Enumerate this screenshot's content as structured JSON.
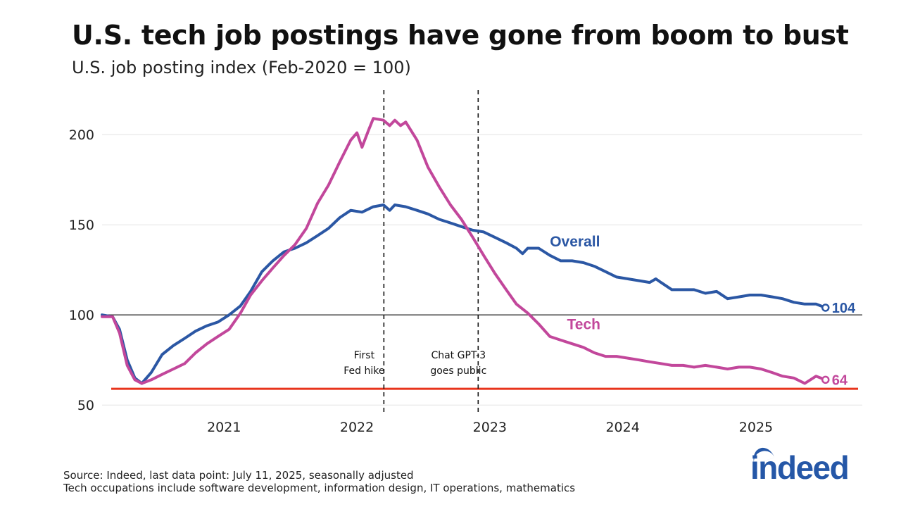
{
  "title": "U.S. tech job postings have gone from boom to bust",
  "subtitle": "U.S. job posting index (Feb-2020 = 100)",
  "footer": {
    "source": "Source: Indeed, last data point: July 11, 2025, seasonally adjusted",
    "note": "Tech occupations include software development, information design, IT operations, mathematics"
  },
  "logo": {
    "text": "indeed",
    "color": "#2557a7"
  },
  "chart_data": {
    "type": "line",
    "ylim": [
      45,
      220
    ],
    "xlim": [
      "2020-02-01",
      "2025-10-20"
    ],
    "yticks": [
      50,
      100,
      150,
      200
    ],
    "xticks": [
      {
        "label": "2021",
        "date": "2021-01-01"
      },
      {
        "label": "2022",
        "date": "2022-01-01"
      },
      {
        "label": "2023",
        "date": "2023-01-01"
      },
      {
        "label": "2024",
        "date": "2024-01-01"
      },
      {
        "label": "2025",
        "date": "2025-01-01"
      }
    ],
    "grid": true,
    "baseline": 100,
    "reference_line": {
      "value": 59,
      "color": "#e8341c"
    },
    "events": [
      {
        "date": "2022-03-16",
        "label_lines": [
          "First",
          "Fed hike"
        ]
      },
      {
        "date": "2022-11-30",
        "label_lines": [
          "Chat GPT-3",
          "goes public"
        ]
      }
    ],
    "series": [
      {
        "name": "Overall",
        "color": "#2b57a4",
        "end_label": "104",
        "points": [
          [
            "2020-02-01",
            100
          ],
          [
            "2020-03-01",
            99
          ],
          [
            "2020-03-20",
            92
          ],
          [
            "2020-04-10",
            75
          ],
          [
            "2020-05-01",
            65
          ],
          [
            "2020-05-20",
            62
          ],
          [
            "2020-06-15",
            68
          ],
          [
            "2020-07-15",
            78
          ],
          [
            "2020-08-15",
            83
          ],
          [
            "2020-09-15",
            87
          ],
          [
            "2020-10-15",
            91
          ],
          [
            "2020-11-15",
            94
          ],
          [
            "2020-12-15",
            96
          ],
          [
            "2021-01-15",
            100
          ],
          [
            "2021-02-15",
            105
          ],
          [
            "2021-03-15",
            113
          ],
          [
            "2021-04-15",
            124
          ],
          [
            "2021-05-15",
            130
          ],
          [
            "2021-06-15",
            135
          ],
          [
            "2021-07-15",
            137
          ],
          [
            "2021-08-15",
            140
          ],
          [
            "2021-09-15",
            144
          ],
          [
            "2021-10-15",
            148
          ],
          [
            "2021-11-15",
            154
          ],
          [
            "2021-12-15",
            158
          ],
          [
            "2022-01-15",
            157
          ],
          [
            "2022-02-15",
            160
          ],
          [
            "2022-03-15",
            161
          ],
          [
            "2022-04-01",
            158
          ],
          [
            "2022-04-15",
            161
          ],
          [
            "2022-05-15",
            160
          ],
          [
            "2022-06-15",
            158
          ],
          [
            "2022-07-15",
            156
          ],
          [
            "2022-08-15",
            153
          ],
          [
            "2022-09-15",
            151
          ],
          [
            "2022-10-15",
            149
          ],
          [
            "2022-11-15",
            147
          ],
          [
            "2022-12-15",
            146
          ],
          [
            "2023-01-15",
            143
          ],
          [
            "2023-02-15",
            140
          ],
          [
            "2023-03-15",
            137
          ],
          [
            "2023-04-01",
            134
          ],
          [
            "2023-04-15",
            137
          ],
          [
            "2023-05-15",
            137
          ],
          [
            "2023-06-15",
            133
          ],
          [
            "2023-07-15",
            130
          ],
          [
            "2023-08-15",
            130
          ],
          [
            "2023-09-15",
            129
          ],
          [
            "2023-10-15",
            127
          ],
          [
            "2023-11-15",
            124
          ],
          [
            "2023-12-15",
            121
          ],
          [
            "2024-01-15",
            120
          ],
          [
            "2024-02-15",
            119
          ],
          [
            "2024-03-15",
            118
          ],
          [
            "2024-04-01",
            120
          ],
          [
            "2024-04-15",
            118
          ],
          [
            "2024-05-15",
            114
          ],
          [
            "2024-06-15",
            114
          ],
          [
            "2024-07-15",
            114
          ],
          [
            "2024-08-15",
            112
          ],
          [
            "2024-09-15",
            113
          ],
          [
            "2024-10-15",
            109
          ],
          [
            "2024-11-15",
            110
          ],
          [
            "2024-12-15",
            111
          ],
          [
            "2025-01-15",
            111
          ],
          [
            "2025-02-15",
            110
          ],
          [
            "2025-03-15",
            109
          ],
          [
            "2025-04-15",
            107
          ],
          [
            "2025-05-15",
            106
          ],
          [
            "2025-06-15",
            106
          ],
          [
            "2025-07-11",
            104
          ]
        ]
      },
      {
        "name": "Tech",
        "color": "#c2479b",
        "end_label": "64",
        "points": [
          [
            "2020-02-01",
            99
          ],
          [
            "2020-03-01",
            99
          ],
          [
            "2020-03-20",
            90
          ],
          [
            "2020-04-10",
            72
          ],
          [
            "2020-05-01",
            64
          ],
          [
            "2020-05-20",
            62
          ],
          [
            "2020-06-15",
            64
          ],
          [
            "2020-07-15",
            67
          ],
          [
            "2020-08-15",
            70
          ],
          [
            "2020-09-15",
            73
          ],
          [
            "2020-10-15",
            79
          ],
          [
            "2020-11-15",
            84
          ],
          [
            "2020-12-15",
            88
          ],
          [
            "2021-01-15",
            92
          ],
          [
            "2021-02-15",
            101
          ],
          [
            "2021-03-15",
            111
          ],
          [
            "2021-04-15",
            119
          ],
          [
            "2021-05-15",
            126
          ],
          [
            "2021-06-15",
            133
          ],
          [
            "2021-07-15",
            139
          ],
          [
            "2021-08-15",
            148
          ],
          [
            "2021-09-15",
            162
          ],
          [
            "2021-10-15",
            172
          ],
          [
            "2021-11-15",
            185
          ],
          [
            "2021-12-15",
            197
          ],
          [
            "2022-01-01",
            201
          ],
          [
            "2022-01-15",
            193
          ],
          [
            "2022-02-01",
            202
          ],
          [
            "2022-02-15",
            209
          ],
          [
            "2022-03-15",
            208
          ],
          [
            "2022-04-01",
            205
          ],
          [
            "2022-04-15",
            208
          ],
          [
            "2022-05-01",
            205
          ],
          [
            "2022-05-15",
            207
          ],
          [
            "2022-06-15",
            197
          ],
          [
            "2022-07-15",
            182
          ],
          [
            "2022-08-15",
            171
          ],
          [
            "2022-09-15",
            161
          ],
          [
            "2022-10-15",
            153
          ],
          [
            "2022-11-15",
            143
          ],
          [
            "2022-12-15",
            133
          ],
          [
            "2023-01-15",
            123
          ],
          [
            "2023-02-15",
            114
          ],
          [
            "2023-03-15",
            106
          ],
          [
            "2023-04-15",
            101
          ],
          [
            "2023-05-15",
            95
          ],
          [
            "2023-06-15",
            88
          ],
          [
            "2023-07-15",
            86
          ],
          [
            "2023-08-15",
            84
          ],
          [
            "2023-09-15",
            82
          ],
          [
            "2023-10-15",
            79
          ],
          [
            "2023-11-15",
            77
          ],
          [
            "2023-12-15",
            77
          ],
          [
            "2024-01-15",
            76
          ],
          [
            "2024-02-15",
            75
          ],
          [
            "2024-03-15",
            74
          ],
          [
            "2024-04-15",
            73
          ],
          [
            "2024-05-15",
            72
          ],
          [
            "2024-06-15",
            72
          ],
          [
            "2024-07-15",
            71
          ],
          [
            "2024-08-15",
            72
          ],
          [
            "2024-09-15",
            71
          ],
          [
            "2024-10-15",
            70
          ],
          [
            "2024-11-15",
            71
          ],
          [
            "2024-12-15",
            71
          ],
          [
            "2025-01-15",
            70
          ],
          [
            "2025-02-15",
            68
          ],
          [
            "2025-03-15",
            66
          ],
          [
            "2025-04-15",
            65
          ],
          [
            "2025-05-15",
            62
          ],
          [
            "2025-06-15",
            66
          ],
          [
            "2025-07-11",
            64
          ]
        ]
      }
    ],
    "series_labels": [
      {
        "series": "Overall",
        "text": "Overall",
        "date": "2023-06-15",
        "value": 138
      },
      {
        "series": "Tech",
        "text": "Tech",
        "date": "2023-08-01",
        "value": 92
      }
    ]
  }
}
